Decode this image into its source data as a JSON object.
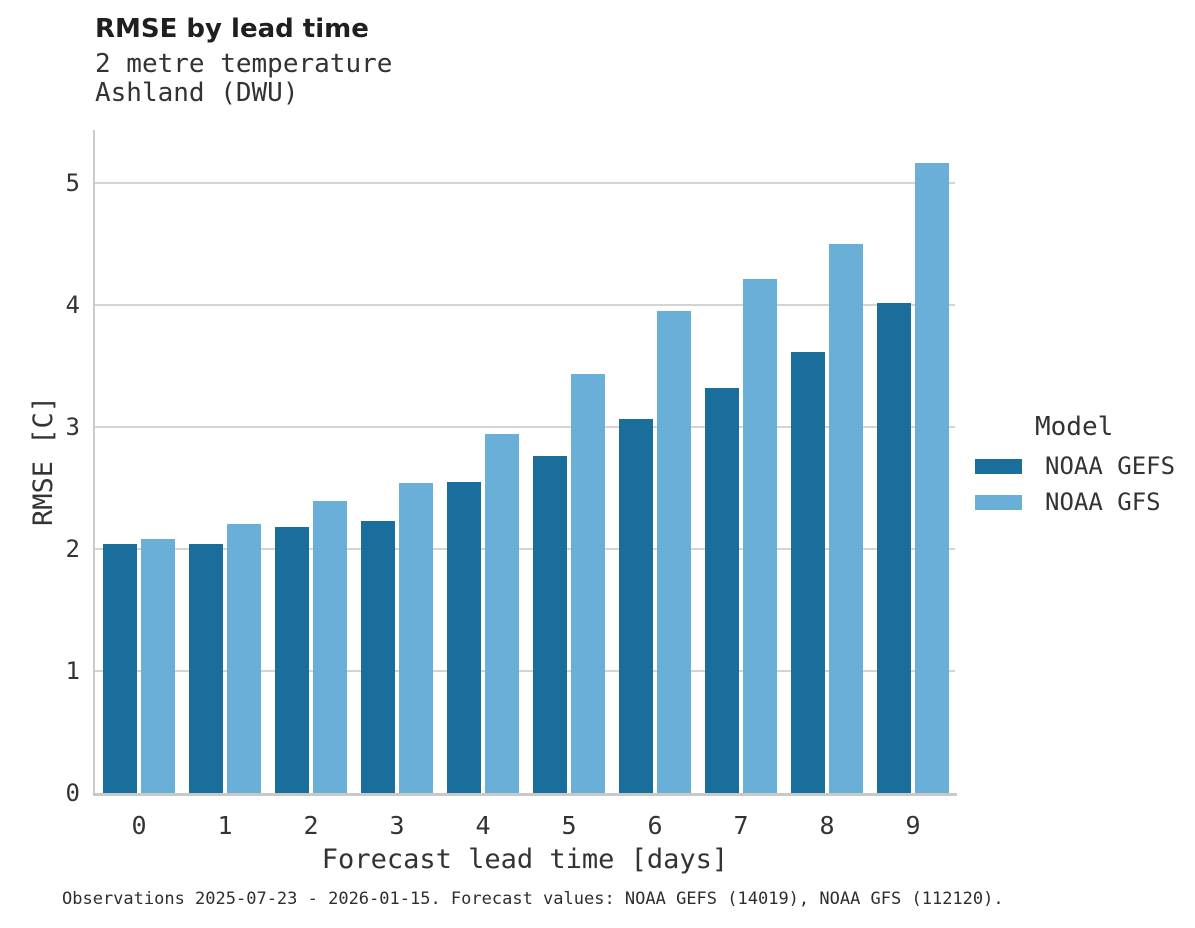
{
  "figure": {
    "title": "RMSE by lead time",
    "subtitle_line1": "2 metre temperature",
    "subtitle_line2": "Ashland (DWU)",
    "caption": "Observations 2025-07-23 - 2026-01-15. Forecast values: NOAA GEFS (14019), NOAA GFS (112120)."
  },
  "legend": {
    "title": "Model",
    "items": [
      {
        "label": "NOAA GEFS",
        "color": "#1a6e9b"
      },
      {
        "label": "NOAA GFS",
        "color": "#6aafd8"
      }
    ]
  },
  "chart_data": {
    "type": "bar",
    "title": "RMSE by lead time",
    "subtitle": [
      "2 metre temperature",
      "Ashland (DWU)"
    ],
    "xlabel": "Forecast lead time [days]",
    "ylabel": "RMSE [C]",
    "categories": [
      "0",
      "1",
      "2",
      "3",
      "4",
      "5",
      "6",
      "7",
      "8",
      "9"
    ],
    "series": [
      {
        "name": "NOAA GEFS",
        "color": "#1a6e9b",
        "values": [
          2.04,
          2.04,
          2.18,
          2.23,
          2.55,
          2.76,
          3.06,
          3.32,
          3.61,
          4.01
        ]
      },
      {
        "name": "NOAA GFS",
        "color": "#6aafd8",
        "values": [
          2.08,
          2.2,
          2.39,
          2.54,
          2.94,
          3.43,
          3.95,
          4.21,
          4.5,
          5.16
        ]
      }
    ],
    "ylim": [
      0,
      5.43
    ],
    "yticks": [
      "0",
      "1",
      "2",
      "3",
      "4",
      "5"
    ],
    "grid": "horizontal",
    "legend_title": "Model",
    "legend_position": "right",
    "caption": "Observations 2025-07-23 - 2026-01-15. Forecast values: NOAA GEFS (14019), NOAA GFS (112120)."
  },
  "colors": {
    "background": "#ffffff",
    "gridline": "#d4d4d4",
    "spine": "#c9c9c9",
    "text": "#333333",
    "title_text": "#1f1f1f"
  }
}
